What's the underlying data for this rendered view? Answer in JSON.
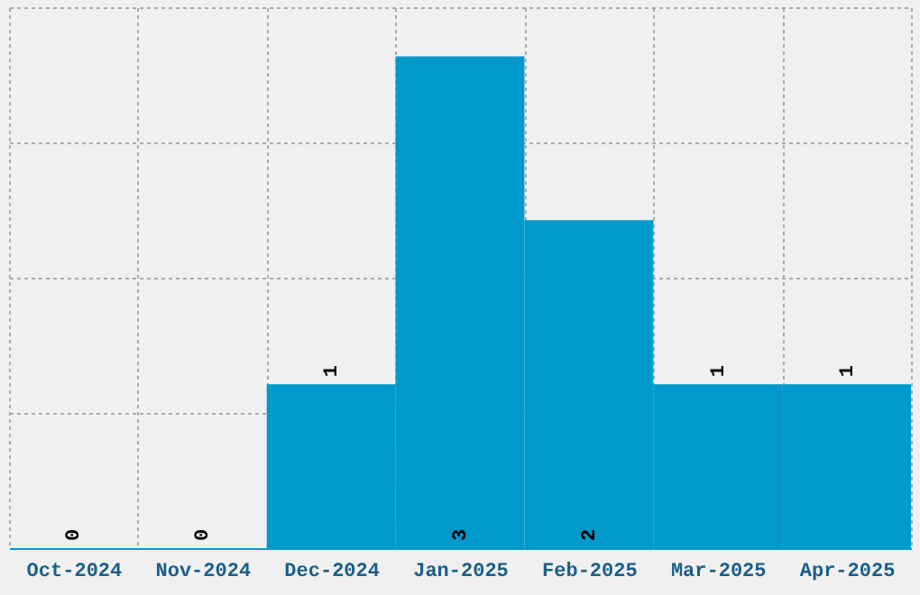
{
  "chart_data": {
    "type": "bar",
    "categories": [
      "Oct-2024",
      "Nov-2024",
      "Dec-2024",
      "Jan-2025",
      "Feb-2025",
      "Mar-2025",
      "Apr-2025"
    ],
    "values": [
      0,
      0,
      1,
      3,
      2,
      1,
      1
    ],
    "color": "#0099cc",
    "data_labels": true,
    "tick_labels": "x",
    "grid": true,
    "ylim": [
      0,
      3.3
    ],
    "yticks": [
      {
        "value": 0,
        "label": null
      },
      {
        "value": 0.825,
        "label": null
      },
      {
        "value": 1.65,
        "label": null
      },
      {
        "value": 2.475,
        "label": null
      },
      {
        "value": 3.3,
        "label": null
      }
    ]
  }
}
